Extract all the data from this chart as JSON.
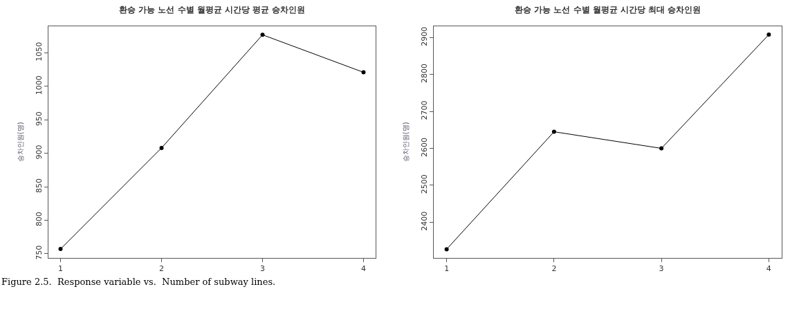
{
  "chart_data": [
    {
      "type": "line",
      "title": "환승 가능 노선 수별 월평균 시간당 평균 승차인원",
      "ylabel": "승차인원(명)",
      "x": [
        1,
        2,
        3,
        4
      ],
      "series": [
        {
          "color": "#000000",
          "values": [
            757,
            908,
            1077,
            1021
          ]
        }
      ],
      "xlim": [
        0.88,
        4.12
      ],
      "xticks": [
        1,
        2,
        3,
        4
      ],
      "ylim": [
        744,
        1090
      ],
      "yticks": [
        750,
        800,
        850,
        900,
        950,
        1000,
        1050
      ],
      "marker": "circle",
      "line_style": "solid",
      "grid": false,
      "annotations": [
        "Figure 2.5.  Response variable vs.  Number of subway lines."
      ]
    },
    {
      "type": "line",
      "title": "환승 가능 노선 수별 월평균 시간당 최대 승차인원",
      "ylabel": "승차인원(명)",
      "x": [
        1,
        2,
        3,
        4
      ],
      "series": [
        {
          "color": "#000000",
          "values": [
            2327,
            2645,
            2600,
            2908
          ]
        }
      ],
      "xlim": [
        0.88,
        4.12
      ],
      "xticks": [
        1,
        2,
        3,
        4
      ],
      "ylim": [
        2304,
        2931
      ],
      "yticks": [
        2400,
        2500,
        2600,
        2700,
        2800,
        2900
      ],
      "marker": "circle",
      "line_style": "solid",
      "grid": false
    }
  ]
}
